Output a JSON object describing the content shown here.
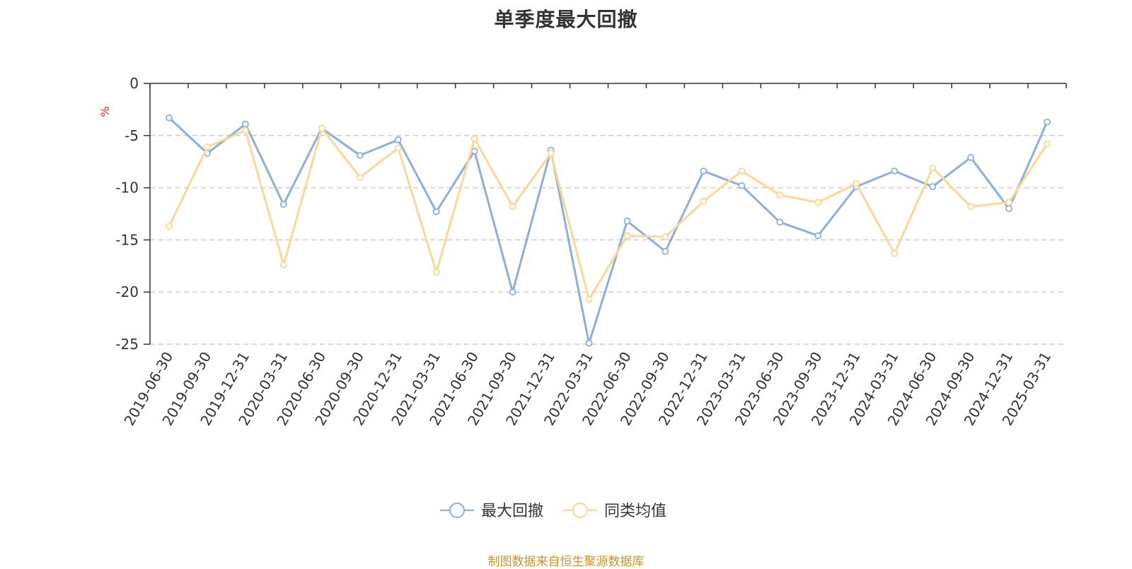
{
  "chart_data": {
    "type": "line",
    "title": "单季度最大回撤",
    "ylabel": "%",
    "xlabel": "",
    "ylim": [
      -25,
      0
    ],
    "yticks": [
      0,
      -5,
      -10,
      -15,
      -20,
      -25
    ],
    "grid": "horizontal dashed",
    "legend_position": "bottom-center",
    "categories": [
      "2019-06-30",
      "2019-09-30",
      "2019-12-31",
      "2020-03-31",
      "2020-06-30",
      "2020-09-30",
      "2020-12-31",
      "2021-03-31",
      "2021-06-30",
      "2021-09-30",
      "2021-12-31",
      "2022-03-31",
      "2022-06-30",
      "2022-09-30",
      "2022-12-31",
      "2023-03-31",
      "2023-06-30",
      "2023-09-30",
      "2023-12-31",
      "2024-03-31",
      "2024-06-30",
      "2024-09-30",
      "2024-12-31",
      "2025-03-31"
    ],
    "series": [
      {
        "name": "最大回撤",
        "color": "#8eaedb",
        "values": [
          -3.3,
          -6.7,
          -3.9,
          -11.6,
          -4.3,
          -6.9,
          -5.4,
          -12.3,
          -6.5,
          -20.0,
          -6.4,
          -24.9,
          -13.2,
          -16.1,
          -8.4,
          -9.8,
          -13.3,
          -14.6,
          -9.9,
          -8.4,
          -9.9,
          -7.1,
          -12.0,
          -3.7
        ]
      },
      {
        "name": "同类均值",
        "color": "#fbd896",
        "values": [
          -13.7,
          -6.1,
          -4.5,
          -17.4,
          -4.3,
          -9.0,
          -6.2,
          -18.1,
          -5.3,
          -11.8,
          -6.7,
          -20.7,
          -14.6,
          -14.7,
          -11.3,
          -8.4,
          -10.7,
          -11.4,
          -9.6,
          -16.3,
          -8.1,
          -11.8,
          -11.4,
          -5.8
        ]
      }
    ]
  },
  "source_note": "制图数据来自恒生聚源数据库",
  "colors": {
    "axis": "#333333",
    "grid": "#cccccc",
    "tick_label": "#333333",
    "ylabel": "#e8242a",
    "source_note": "#c8962a"
  }
}
